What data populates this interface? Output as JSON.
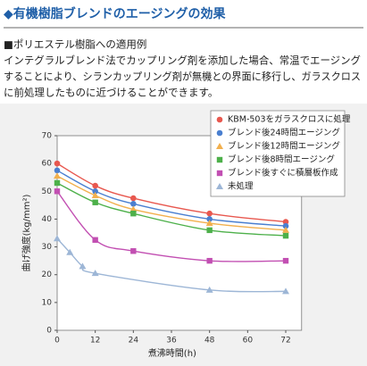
{
  "header": {
    "title": "◆有機樹脂ブレンドのエージングの効果"
  },
  "section": {
    "heading": "■ポリエステル樹脂への適用例",
    "lines": [
      "インテグラルブレンド法でカップリング剤を添加した場合、常温でエージング",
      "することにより、シランカップリング剤が無機との界面に移行し、ガラスクロス",
      "に前処理したものに近づけることができます。"
    ]
  },
  "chart_data": {
    "type": "line",
    "x_label": "煮沸時間(h)",
    "y_label": "曲げ強度(kg/mm²)",
    "xlim": [
      0,
      77
    ],
    "xticks": [
      0,
      12,
      24,
      36,
      48,
      60,
      72
    ],
    "ylim": [
      0,
      70
    ],
    "yticks": [
      0,
      10,
      20,
      30,
      40,
      50,
      60,
      70
    ],
    "legend": "upper right",
    "series": [
      {
        "name": "KBM-503をガラスクロスに処理",
        "color": "#e8584f",
        "marker": "circle",
        "x": [
          0,
          12,
          24,
          48,
          72
        ],
        "values": [
          60,
          52,
          47.5,
          42,
          39
        ]
      },
      {
        "name": "ブレンド後24時間エージング",
        "color": "#4a7fd0",
        "marker": "circle",
        "x": [
          0,
          12,
          24,
          48,
          72
        ],
        "values": [
          57.5,
          50,
          45.5,
          40,
          37.5
        ]
      },
      {
        "name": "ブレンド後12時間エージング",
        "color": "#f2b04e",
        "marker": "triangle",
        "x": [
          0,
          12,
          24,
          48,
          72
        ],
        "values": [
          55.5,
          48.5,
          43.5,
          38.5,
          36
        ]
      },
      {
        "name": "ブレンド後8時間エージング",
        "color": "#4db04a",
        "marker": "square",
        "x": [
          0,
          12,
          24,
          48,
          72
        ],
        "values": [
          53,
          46,
          42,
          36,
          34
        ]
      },
      {
        "name": "ブレンド後すぐに積層板作成",
        "color": "#c24fb2",
        "marker": "square",
        "x": [
          0,
          12,
          24,
          48,
          72
        ],
        "values": [
          50,
          32.5,
          28.5,
          25,
          25
        ]
      },
      {
        "name": "未処理",
        "color": "#9db6d6",
        "marker": "triangle",
        "x": [
          0,
          4,
          8,
          12,
          48,
          72
        ],
        "values": [
          33,
          28,
          23,
          20.5,
          14.5,
          14
        ]
      }
    ]
  }
}
